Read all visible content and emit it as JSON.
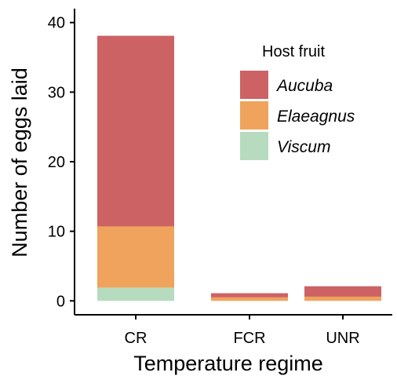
{
  "chart_data": {
    "type": "bar",
    "stacked": true,
    "categories": [
      "CR",
      "FCR",
      "UNR"
    ],
    "series": [
      {
        "name": "Viscum",
        "color": "#b7dbbf",
        "values": [
          1.9,
          0.0,
          0.0
        ]
      },
      {
        "name": "Elaeagnus",
        "color": "#f0a35c",
        "values": [
          8.8,
          0.5,
          0.6
        ]
      },
      {
        "name": "Aucuba",
        "color": "#cd6264",
        "values": [
          27.4,
          0.6,
          1.5
        ]
      }
    ],
    "xlabel": "Temperature regime",
    "ylabel": "Number of eggs laid",
    "ylim": [
      -2,
      42
    ],
    "yticks": [
      0,
      10,
      20,
      30,
      40
    ],
    "legend": {
      "title": "Host fruit",
      "position": "top-right",
      "order": [
        "Aucuba",
        "Elaeagnus",
        "Viscum"
      ]
    },
    "grid": false
  }
}
